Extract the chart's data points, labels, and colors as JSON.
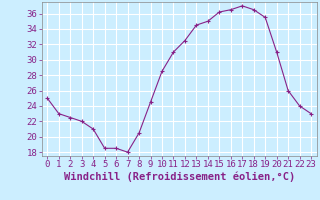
{
  "hours": [
    0,
    1,
    2,
    3,
    4,
    5,
    6,
    7,
    8,
    9,
    10,
    11,
    12,
    13,
    14,
    15,
    16,
    17,
    18,
    19,
    20,
    21,
    22,
    23
  ],
  "values": [
    25,
    23,
    22.5,
    22,
    21,
    18.5,
    18.5,
    18,
    20.5,
    24.5,
    28.5,
    31,
    32.5,
    34.5,
    35,
    36.2,
    36.5,
    37,
    36.5,
    35.5,
    31,
    26,
    24,
    23
  ],
  "line_color": "#882288",
  "marker": "+",
  "bg_color": "#cceeff",
  "grid_color": "#ffffff",
  "ylabel_values": [
    18,
    20,
    22,
    24,
    26,
    28,
    30,
    32,
    34,
    36
  ],
  "ylim": [
    17.5,
    37.5
  ],
  "xlim": [
    -0.5,
    23.5
  ],
  "xlabel": "Windchill (Refroidissement éolien,°C)",
  "xlabel_fontsize": 7.5,
  "tick_fontsize": 6.5,
  "figsize": [
    3.2,
    2.0
  ],
  "dpi": 100
}
